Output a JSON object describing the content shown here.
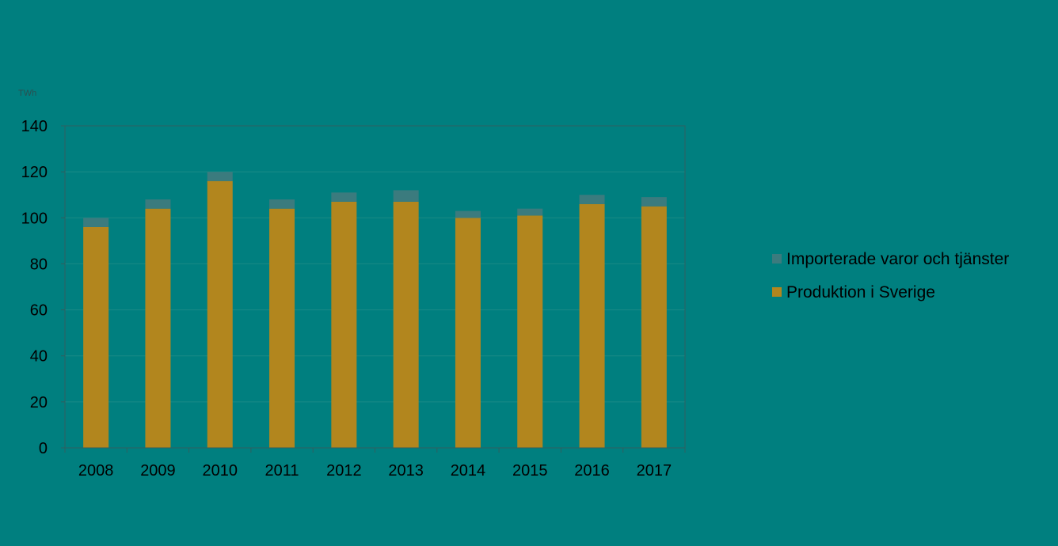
{
  "chart_data": {
    "type": "bar",
    "stacked": true,
    "title": "",
    "unit_label": "TWh",
    "xlabel": "",
    "ylabel": "",
    "ylim": [
      0,
      140
    ],
    "yticks": [
      0,
      20,
      40,
      60,
      80,
      100,
      120,
      140
    ],
    "grid": true,
    "legend_position": "right",
    "categories": [
      "2008",
      "2009",
      "2010",
      "2011",
      "2012",
      "2013",
      "2014",
      "2015",
      "2016",
      "2017"
    ],
    "series": [
      {
        "name": "Produktion i Sverige",
        "color": "#b2861e",
        "values": [
          96,
          104,
          116,
          104,
          107,
          107,
          100,
          101,
          106,
          105
        ]
      },
      {
        "name": "Importerade varor och tjänster",
        "color": "#3b7b7e",
        "values": [
          4,
          4,
          4,
          4,
          4,
          5,
          3,
          3,
          4,
          4
        ]
      }
    ],
    "legend_order": [
      "Importerade varor och tjänster",
      "Produktion i Sverige"
    ]
  },
  "colors": {
    "background": "#007f7f",
    "axis": "#2f5f60",
    "grid": "#1a8a86",
    "text": "#000000"
  }
}
